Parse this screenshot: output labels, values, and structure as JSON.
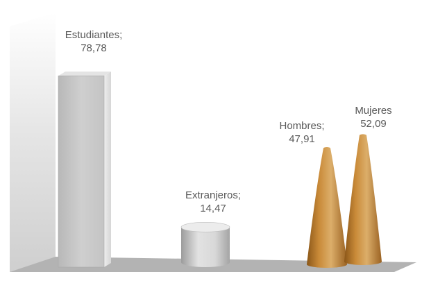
{
  "chart_data": {
    "type": "bar",
    "categories": [
      "Estudiantes",
      "Extranjeros",
      "Hombres",
      "Mujeres"
    ],
    "values": [
      78.78,
      14.47,
      47.91,
      52.09
    ],
    "shapes": [
      "box",
      "cylinder",
      "cone",
      "cone"
    ],
    "data_labels": [
      [
        "Estudiantes;",
        "78,78"
      ],
      [
        "Extranjeros;",
        "14,47"
      ],
      [
        "Hombres;",
        "47,91"
      ],
      [
        "Mujeres",
        "52,09"
      ]
    ],
    "ylim": [
      0,
      100
    ],
    "grid": false,
    "legend": "none",
    "colors": {
      "box": "#c8c8c8",
      "cylinder": "#d4d4d4",
      "cone": "#c98a38",
      "floor": "#b3b3b3",
      "wall": "#dcdcdc",
      "label": "#595959"
    }
  }
}
